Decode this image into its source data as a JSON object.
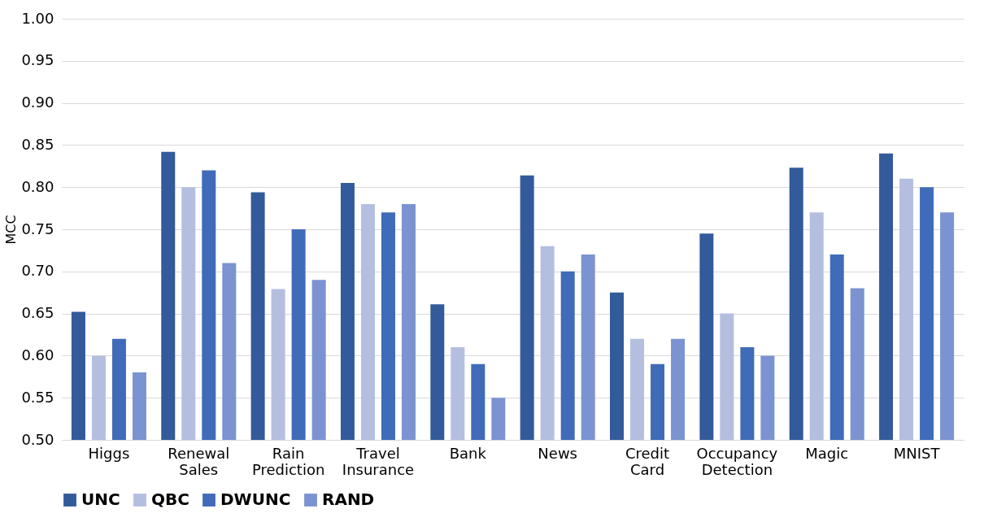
{
  "chart_data": {
    "type": "bar",
    "ylabel": "MCC",
    "categories": [
      "Higgs",
      "Renewal Sales",
      "Rain Prediction",
      "Travel Insurance",
      "Bank",
      "News",
      "Credit Card",
      "Occupancy Detection",
      "Magic",
      "MNIST"
    ],
    "series": [
      {
        "name": "UNC",
        "color": "#335a9a",
        "values": [
          0.652,
          0.842,
          0.794,
          0.805,
          0.661,
          0.814,
          0.675,
          0.745,
          0.823,
          0.84
        ]
      },
      {
        "name": "QBC",
        "color": "#b4bfe0",
        "values": [
          0.6,
          0.8,
          0.679,
          0.78,
          0.61,
          0.73,
          0.62,
          0.65,
          0.77,
          0.81
        ]
      },
      {
        "name": "DWUNC",
        "color": "#406bb8",
        "values": [
          0.62,
          0.82,
          0.75,
          0.77,
          0.59,
          0.7,
          0.59,
          0.61,
          0.72,
          0.8
        ]
      },
      {
        "name": "RAND",
        "color": "#7b93d0",
        "values": [
          0.58,
          0.71,
          0.69,
          0.78,
          0.55,
          0.72,
          0.62,
          0.6,
          0.68,
          0.77
        ]
      }
    ],
    "ylim": [
      0.5,
      1.0
    ],
    "yticks": [
      {
        "value": 0.5,
        "label": "0.50"
      },
      0.55,
      {
        "value": 0.6,
        "label": "0.60"
      },
      0.65,
      {
        "value": 0.7,
        "label": "0.70"
      },
      0.75,
      {
        "value": 0.8,
        "label": "0.80"
      },
      0.85,
      {
        "value": 0.9,
        "label": "0.90"
      },
      0.95,
      {
        "value": 1.0,
        "label": "1.00"
      }
    ],
    "grid": "y",
    "legend": "bottom"
  }
}
